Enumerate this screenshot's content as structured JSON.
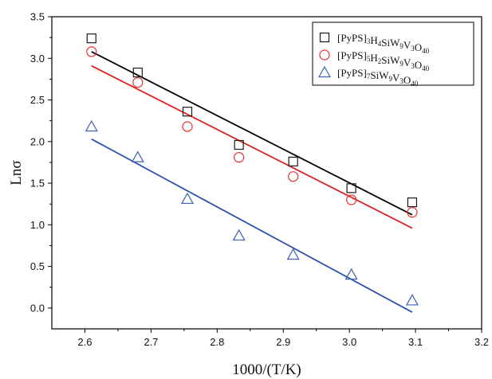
{
  "chart_data": {
    "type": "scatter",
    "title": "",
    "xlabel": "1000/(T/K)",
    "ylabel": "Lnσ",
    "xlim": [
      2.55,
      3.2
    ],
    "ylim": [
      -0.25,
      3.5
    ],
    "x_ticks": [
      2.6,
      2.7,
      2.8,
      2.9,
      3.0,
      3.1,
      3.2
    ],
    "x_tick_labels": [
      "2.6",
      "2.7",
      "2.8",
      "2.9",
      "3.0",
      "3.1",
      "3.2"
    ],
    "y_ticks": [
      0.0,
      0.5,
      1.0,
      1.5,
      2.0,
      2.5,
      3.0,
      3.5
    ],
    "y_tick_labels": [
      "0.0",
      "0.5",
      "1.0",
      "1.5",
      "2.0",
      "2.5",
      "3.0",
      "3.5"
    ],
    "grid": false,
    "legend_position": "top-right",
    "series": [
      {
        "name": "[PyPS]3H4SiW9V3O40",
        "legend_parts": [
          [
            "[PyPS]",
            ""
          ],
          [
            "3",
            "sub"
          ],
          [
            "H",
            ""
          ],
          [
            "4",
            "sub"
          ],
          [
            "SiW",
            ""
          ],
          [
            "9",
            "sub"
          ],
          [
            "V",
            ""
          ],
          [
            "3",
            "sub"
          ],
          [
            "O",
            ""
          ],
          [
            "40",
            "sub"
          ]
        ],
        "marker": "square",
        "marker_color": "#1a1a1a",
        "line_color": "#000000",
        "x": [
          2.61,
          2.68,
          2.755,
          2.833,
          2.915,
          3.003,
          3.095
        ],
        "y": [
          3.24,
          2.83,
          2.36,
          1.96,
          1.76,
          1.44,
          1.27
        ],
        "fit": {
          "x": [
            2.61,
            3.095
          ],
          "y": [
            3.08,
            1.12
          ]
        }
      },
      {
        "name": "[PyPS]5H2SiW9V3O40",
        "legend_parts": [
          [
            "[PyPS]",
            ""
          ],
          [
            "5",
            "sub"
          ],
          [
            "H",
            ""
          ],
          [
            "2",
            "sub"
          ],
          [
            "SiW",
            ""
          ],
          [
            "9",
            "sub"
          ],
          [
            "V",
            ""
          ],
          [
            "3",
            "sub"
          ],
          [
            "O",
            ""
          ],
          [
            "40",
            "sub"
          ]
        ],
        "marker": "circle",
        "marker_color": "#e53333",
        "line_color": "#e02020",
        "x": [
          2.61,
          2.68,
          2.755,
          2.833,
          2.915,
          3.003,
          3.095
        ],
        "y": [
          3.08,
          2.71,
          2.18,
          1.81,
          1.58,
          1.3,
          1.15
        ],
        "fit": {
          "x": [
            2.61,
            3.095
          ],
          "y": [
            2.91,
            0.96
          ]
        }
      },
      {
        "name": "[PyPS]7SiW9V3O40",
        "legend_parts": [
          [
            "[PyPS]",
            ""
          ],
          [
            "7",
            "sub"
          ],
          [
            "SiW",
            ""
          ],
          [
            "9",
            "sub"
          ],
          [
            "V",
            ""
          ],
          [
            "3",
            "sub"
          ],
          [
            "O",
            ""
          ],
          [
            "40",
            "sub"
          ]
        ],
        "marker": "triangle",
        "marker_color": "#3d5fb8",
        "line_color": "#2b4fad",
        "x": [
          2.61,
          2.68,
          2.755,
          2.833,
          2.915,
          3.003,
          3.095
        ],
        "y": [
          2.18,
          1.81,
          1.31,
          0.87,
          0.64,
          0.4,
          0.09
        ],
        "fit": {
          "x": [
            2.61,
            3.095
          ],
          "y": [
            2.03,
            -0.05
          ]
        }
      }
    ]
  }
}
